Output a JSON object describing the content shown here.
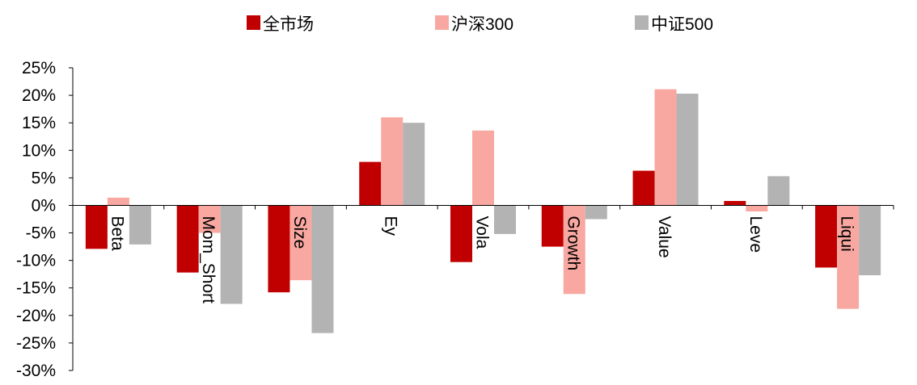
{
  "chart_data": {
    "type": "bar",
    "categories": [
      "Beta",
      "Mom_Short",
      "Size",
      "Ey",
      "Vola",
      "Growth",
      "Value",
      "Leve",
      "Liqui"
    ],
    "series": [
      {
        "name": "全市场",
        "color": "#C00000",
        "values": [
          -7.9,
          -12.2,
          -15.8,
          7.9,
          -10.3,
          -7.5,
          6.3,
          0.8,
          -11.3
        ]
      },
      {
        "name": "沪深300",
        "color": "#F8A8A0",
        "values": [
          1.4,
          -5.0,
          -13.6,
          16.0,
          13.6,
          -16.1,
          21.1,
          -1.1,
          -18.8
        ]
      },
      {
        "name": "中证500",
        "color": "#B3B3B3",
        "values": [
          -7.1,
          -17.9,
          -23.2,
          15.0,
          -5.2,
          -2.5,
          20.3,
          5.3,
          -12.7
        ]
      }
    ],
    "ylim": [
      -30,
      25
    ],
    "yticks": [
      "25%",
      "20%",
      "15%",
      "10%",
      "5%",
      "0%",
      "-5%",
      "-10%",
      "-15%",
      "-20%",
      "-25%",
      "-30%"
    ],
    "legend_position": "top",
    "grid": false
  }
}
